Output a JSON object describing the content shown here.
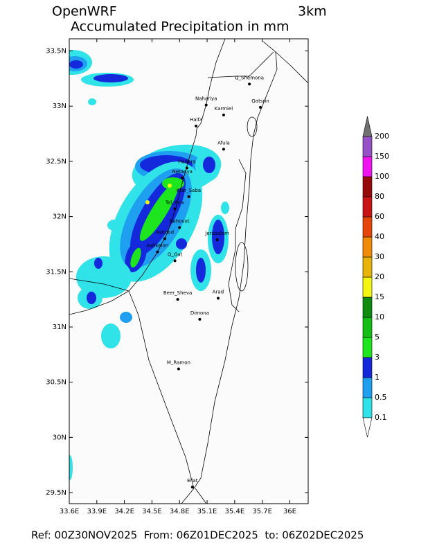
{
  "header": {
    "model": "OpenWRF",
    "resolution": "3km",
    "title": "Accumulated Precipitation in mm"
  },
  "map": {
    "xlim": [
      33.6,
      36.2
    ],
    "ylim": [
      29.4,
      33.61
    ],
    "xticks": [
      {
        "value": 33.6,
        "label": "33.6E"
      },
      {
        "value": 33.9,
        "label": "33.9E"
      },
      {
        "value": 34.2,
        "label": "34.2E"
      },
      {
        "value": 34.5,
        "label": "34.5E"
      },
      {
        "value": 34.8,
        "label": "34.8E"
      },
      {
        "value": 35.1,
        "label": "35.1E"
      },
      {
        "value": 35.4,
        "label": "35.4E"
      },
      {
        "value": 35.7,
        "label": "35.7E"
      },
      {
        "value": 36,
        "label": "36E"
      }
    ],
    "yticks": [
      {
        "value": 29.5,
        "label": "29.5N"
      },
      {
        "value": 30,
        "label": "30N"
      },
      {
        "value": 30.5,
        "label": "30.5N"
      },
      {
        "value": 31,
        "label": "31N"
      },
      {
        "value": 31.5,
        "label": "31.5N"
      },
      {
        "value": 32,
        "label": "32N"
      },
      {
        "value": 32.5,
        "label": "32.5N"
      },
      {
        "value": 33,
        "label": "33N"
      },
      {
        "value": 33.5,
        "label": "33.5N"
      }
    ],
    "cities": [
      {
        "name": "Q_Shemona",
        "lon": 35.56,
        "lat": 33.2
      },
      {
        "name": "Nahariya",
        "lon": 35.09,
        "lat": 33.01
      },
      {
        "name": "Karmiel",
        "lon": 35.28,
        "lat": 32.92
      },
      {
        "name": "Qatsrin",
        "lon": 35.68,
        "lat": 32.99
      },
      {
        "name": "Haifa",
        "lon": 34.98,
        "lat": 32.82
      },
      {
        "name": "Afula",
        "lon": 35.28,
        "lat": 32.61
      },
      {
        "name": "Hadera",
        "lon": 34.88,
        "lat": 32.44
      },
      {
        "name": "Netanya",
        "lon": 34.83,
        "lat": 32.35
      },
      {
        "name": "Kfar_Saba",
        "lon": 34.9,
        "lat": 32.18
      },
      {
        "name": "Tel_Aviv",
        "lon": 34.75,
        "lat": 32.07
      },
      {
        "name": "Rehovot",
        "lon": 34.8,
        "lat": 31.9
      },
      {
        "name": "Ashdod",
        "lon": 34.64,
        "lat": 31.8
      },
      {
        "name": "Jerusalem",
        "lon": 35.21,
        "lat": 31.79
      },
      {
        "name": "Ashkelon",
        "lon": 34.56,
        "lat": 31.68
      },
      {
        "name": "Q_Gat",
        "lon": 34.75,
        "lat": 31.6
      },
      {
        "name": "Beer_Sheva",
        "lon": 34.78,
        "lat": 31.25
      },
      {
        "name": "Arad",
        "lon": 35.22,
        "lat": 31.26
      },
      {
        "name": "Dimona",
        "lon": 35.02,
        "lat": 31.07
      },
      {
        "name": "M_Ramon",
        "lon": 34.79,
        "lat": 30.62
      },
      {
        "name": "Eilat",
        "lon": 34.94,
        "lat": 29.55
      }
    ]
  },
  "colorbar": {
    "levels": [
      0.1,
      0.5,
      1,
      3,
      5,
      10,
      15,
      20,
      30,
      40,
      60,
      80,
      100,
      150,
      200
    ],
    "colors": [
      "#2fe3e8",
      "#1f9ff0",
      "#1428dc",
      "#1ee61e",
      "#14be14",
      "#0f8c0f",
      "#f5f514",
      "#e6b40a",
      "#f08c0a",
      "#e6460a",
      "#c81414",
      "#960a0a",
      "#f014f0",
      "#9650c8"
    ],
    "under_color": "#ffffff",
    "over_color": "#707070"
  },
  "footer": "Ref: 00Z30NOV2025  From: 06Z01DEC2025  to: 06Z02DEC2025"
}
